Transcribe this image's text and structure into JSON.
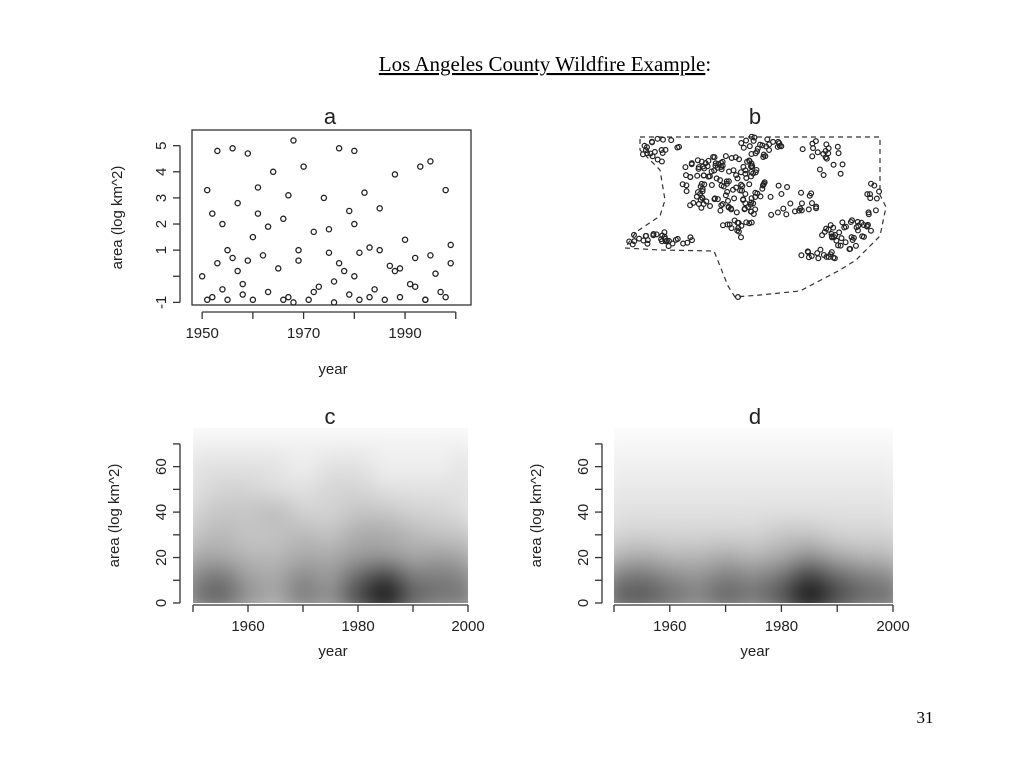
{
  "heading": {
    "underlined": "Los Angeles County Wildfire Example",
    "rest": ":"
  },
  "page_number": "31",
  "chart_data": [
    {
      "type": "scatter",
      "title": "a",
      "xlabel": "year",
      "ylabel": "area (log km^2)",
      "xlim": [
        1948,
        2003
      ],
      "ylim": [
        -1.1,
        5.6
      ],
      "xticks": [
        1950,
        1970,
        1990
      ],
      "minor_xticks": [
        1960,
        1980,
        2000
      ],
      "yticks": [
        -1,
        1,
        2,
        3,
        4,
        5
      ],
      "minor_yticks": [
        0
      ],
      "x": [
        1950,
        1951,
        1952,
        1953,
        1953,
        1954,
        1955,
        1955,
        1956,
        1957,
        1957,
        1958,
        1959,
        1960,
        1960,
        1961,
        1962,
        1963,
        1964,
        1965,
        1966,
        1967,
        1968,
        1968,
        1969,
        1970,
        1971,
        1972,
        1973,
        1974,
        1975,
        1976,
        1977,
        1978,
        1979,
        1979,
        1980,
        1980,
        1981,
        1982,
        1983,
        1984,
        1985,
        1986,
        1987,
        1988,
        1989,
        1990,
        1991,
        1992,
        1993,
        1994,
        1995,
        1996,
        1997,
        1998,
        1999,
        1951,
        1954,
        1956,
        1958,
        1961,
        1963,
        1966,
        1969,
        1972,
        1975,
        1977,
        1980,
        1983,
        1985,
        1988,
        1992,
        1995,
        1998,
        1952,
        1959,
        1967,
        1976,
        1981,
        1989,
        1994,
        1999
      ],
      "y": [
        0,
        3.3,
        -0.8,
        4.8,
        0.5,
        -0.5,
        1.0,
        -0.9,
        4.9,
        2.8,
        0.2,
        -0.7,
        4.7,
        1.5,
        -0.9,
        3.4,
        0.8,
        -0.6,
        4.0,
        0.3,
        2.2,
        -0.8,
        5.2,
        -1.0,
        0.6,
        4.2,
        -0.9,
        1.7,
        -0.4,
        3.0,
        0.9,
        -1.0,
        4.9,
        0.2,
        2.5,
        -0.7,
        4.8,
        0.0,
        -0.9,
        3.2,
        1.1,
        -0.5,
        2.6,
        -0.9,
        0.4,
        3.9,
        -0.8,
        1.4,
        -0.3,
        0.7,
        4.2,
        -0.9,
        4.4,
        0.1,
        -0.6,
        3.3,
        1.2,
        -0.9,
        2.0,
        0.7,
        -0.3,
        2.4,
        1.9,
        -0.9,
        1.0,
        -0.6,
        1.8,
        0.5,
        2.0,
        -0.8,
        1.0,
        0.2,
        -0.4,
        0.8,
        -0.8,
        2.4,
        0.6,
        3.1,
        -0.2,
        0.9,
        0.3,
        -0.9,
        0.5
      ],
      "color": "#222222"
    },
    {
      "type": "map",
      "title": "b"
    },
    {
      "type": "heatmap",
      "title": "c",
      "xlabel": "year",
      "ylabel": "area (log km^2)",
      "xlim": [
        1950,
        2000
      ],
      "ylim": [
        0,
        77
      ],
      "xticks": [
        1960,
        1980,
        2000
      ],
      "minor_xticks": [
        1950,
        1970,
        1990
      ],
      "yticks": [
        0,
        20,
        40,
        60
      ],
      "minor_yticks": [
        10,
        30,
        50,
        70
      ],
      "x": [
        1950,
        1955,
        1960,
        1965,
        1970,
        1975,
        1980,
        1985,
        1990,
        1995,
        2000
      ],
      "y": [
        0,
        10,
        20,
        30,
        40,
        50,
        60,
        70
      ],
      "z": [
        [
          0.5,
          0.6,
          0.4,
          0.3,
          0.5,
          0.4,
          0.7,
          0.95,
          0.6,
          0.5,
          0.5
        ],
        [
          0.45,
          0.55,
          0.35,
          0.3,
          0.45,
          0.35,
          0.6,
          0.8,
          0.5,
          0.5,
          0.45
        ],
        [
          0.3,
          0.3,
          0.25,
          0.25,
          0.3,
          0.3,
          0.35,
          0.35,
          0.3,
          0.35,
          0.3
        ],
        [
          0.2,
          0.25,
          0.2,
          0.2,
          0.25,
          0.2,
          0.3,
          0.3,
          0.25,
          0.2,
          0.2
        ],
        [
          0.15,
          0.2,
          0.2,
          0.25,
          0.15,
          0.15,
          0.2,
          0.2,
          0.15,
          0.15,
          0.1
        ],
        [
          0.1,
          0.15,
          0.15,
          0.1,
          0.1,
          0.15,
          0.15,
          0.1,
          0.1,
          0.1,
          0.1
        ],
        [
          0.1,
          0.1,
          0.1,
          0.1,
          0.05,
          0.1,
          0.1,
          0.05,
          0.05,
          0.05,
          0.1
        ],
        [
          0.05,
          0.05,
          0.05,
          0.05,
          0.05,
          0.05,
          0.05,
          0.05,
          0.05,
          0.05,
          0.05
        ]
      ],
      "color": "#000000"
    },
    {
      "type": "heatmap",
      "title": "d",
      "xlabel": "year",
      "ylabel": "area (log km^2)",
      "xlim": [
        1950,
        2000
      ],
      "ylim": [
        0,
        77
      ],
      "xticks": [
        1960,
        1980,
        2000
      ],
      "minor_xticks": [
        1950,
        1970,
        1990
      ],
      "yticks": [
        0,
        20,
        40,
        60
      ],
      "minor_yticks": [
        10,
        30,
        50,
        70
      ],
      "x": [
        1950,
        1955,
        1960,
        1965,
        1970,
        1975,
        1980,
        1985,
        1990,
        1995,
        2000
      ],
      "y": [
        0,
        10,
        20,
        30,
        40,
        50,
        60,
        70
      ],
      "z": [
        [
          0.6,
          0.65,
          0.55,
          0.45,
          0.6,
          0.5,
          0.65,
          0.95,
          0.7,
          0.55,
          0.55
        ],
        [
          0.5,
          0.55,
          0.45,
          0.4,
          0.5,
          0.45,
          0.55,
          0.8,
          0.6,
          0.5,
          0.45
        ],
        [
          0.25,
          0.3,
          0.25,
          0.25,
          0.3,
          0.25,
          0.3,
          0.4,
          0.3,
          0.25,
          0.25
        ],
        [
          0.15,
          0.15,
          0.15,
          0.15,
          0.15,
          0.15,
          0.2,
          0.2,
          0.15,
          0.15,
          0.15
        ],
        [
          0.1,
          0.1,
          0.1,
          0.1,
          0.1,
          0.1,
          0.1,
          0.1,
          0.1,
          0.1,
          0.1
        ],
        [
          0.08,
          0.08,
          0.08,
          0.08,
          0.08,
          0.08,
          0.08,
          0.08,
          0.08,
          0.08,
          0.08
        ],
        [
          0.05,
          0.05,
          0.05,
          0.05,
          0.05,
          0.05,
          0.05,
          0.05,
          0.05,
          0.05,
          0.05
        ],
        [
          0.03,
          0.03,
          0.03,
          0.03,
          0.03,
          0.03,
          0.03,
          0.03,
          0.03,
          0.03,
          0.03
        ]
      ],
      "color": "#000000"
    }
  ]
}
